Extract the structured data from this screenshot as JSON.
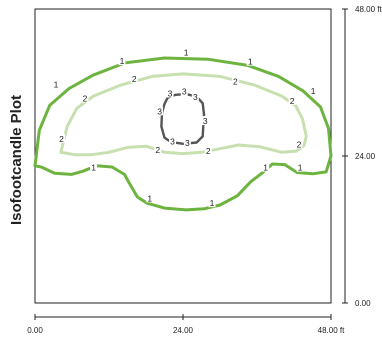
{
  "chart_data": {
    "type": "contour",
    "title": "Isofootcandle Plot",
    "x_ticks": [
      {
        "value": 0,
        "label": "0.00"
      },
      {
        "value": 24,
        "label": "24.00"
      },
      {
        "value": 48,
        "label": "48.00 ft"
      }
    ],
    "y_ticks": [
      {
        "value": 0,
        "label": "0.00"
      },
      {
        "value": 24,
        "label": "24.00"
      },
      {
        "value": 48,
        "label": "48.00 ft"
      }
    ],
    "xlim": [
      0,
      48
    ],
    "ylim": [
      0,
      48
    ],
    "grid": false,
    "levels": [
      {
        "level": 1,
        "label": "1",
        "color": "#6db33f",
        "points": [
          [
            0,
            22.4
          ],
          [
            0.7,
            28.2
          ],
          [
            2.4,
            32.3
          ],
          [
            5.5,
            35
          ],
          [
            9.4,
            37.2
          ],
          [
            14.6,
            39.2
          ],
          [
            21,
            40
          ],
          [
            28,
            39.8
          ],
          [
            34.5,
            38.8
          ],
          [
            39.5,
            37
          ],
          [
            43.5,
            34.6
          ],
          [
            46.3,
            32
          ],
          [
            47.6,
            28.5
          ],
          [
            48,
            24
          ],
          [
            47.2,
            21.4
          ],
          [
            45,
            21.1
          ],
          [
            42.5,
            21.3
          ],
          [
            40.5,
            22.6
          ],
          [
            38.5,
            22.7
          ],
          [
            36.8,
            21.2
          ],
          [
            35,
            19.8
          ],
          [
            32.8,
            17.5
          ],
          [
            30,
            16
          ],
          [
            27.5,
            15.4
          ],
          [
            24.5,
            15.2
          ],
          [
            21,
            15.5
          ],
          [
            18.2,
            16.3
          ],
          [
            16.6,
            17.3
          ],
          [
            15.5,
            19.2
          ],
          [
            14.5,
            21
          ],
          [
            12.5,
            22.2
          ],
          [
            10,
            22.4
          ],
          [
            7.7,
            21.5
          ],
          [
            5.9,
            21
          ],
          [
            3.2,
            21.2
          ],
          [
            1,
            22.2
          ],
          [
            0,
            22.4
          ]
        ],
        "label_points": [
          [
            3.4,
            35.7
          ],
          [
            14.1,
            39.5
          ],
          [
            24.5,
            40.9
          ],
          [
            34.9,
            39.4
          ],
          [
            45.1,
            34.6
          ],
          [
            9.5,
            22.1
          ],
          [
            18.6,
            17.1
          ],
          [
            28.7,
            16.3
          ],
          [
            37.4,
            22.1
          ],
          [
            43,
            22.1
          ]
        ]
      },
      {
        "level": 2,
        "label": "2",
        "color": "#c8e0b0",
        "points": [
          [
            4.2,
            24.6
          ],
          [
            5.2,
            28.8
          ],
          [
            6.8,
            31.8
          ],
          [
            9.5,
            33.8
          ],
          [
            14,
            35.6
          ],
          [
            19,
            37
          ],
          [
            24,
            37.4
          ],
          [
            30,
            37
          ],
          [
            35.5,
            35.6
          ],
          [
            40,
            33.8
          ],
          [
            42.3,
            32.2
          ],
          [
            43.4,
            30
          ],
          [
            44,
            27.2
          ],
          [
            43.6,
            25.7
          ],
          [
            42.4,
            24.8
          ],
          [
            40,
            24.6
          ],
          [
            36.5,
            25.5
          ],
          [
            33,
            25.8
          ],
          [
            30,
            25.2
          ],
          [
            27,
            24.6
          ],
          [
            24,
            24.4
          ],
          [
            21,
            24.6
          ],
          [
            18,
            25.6
          ],
          [
            15,
            25.4
          ],
          [
            12,
            24.6
          ],
          [
            9,
            24.2
          ],
          [
            6.5,
            24.2
          ],
          [
            4.8,
            24.5
          ],
          [
            4.2,
            24.6
          ]
        ],
        "label_points": [
          [
            8.1,
            33.4
          ],
          [
            16.1,
            36.6
          ],
          [
            32.5,
            36.2
          ],
          [
            41.7,
            33
          ],
          [
            4.3,
            26.8
          ],
          [
            19.9,
            25
          ],
          [
            28.1,
            24.8
          ],
          [
            42.8,
            25.9
          ]
        ]
      },
      {
        "level": 3,
        "label": "3",
        "color": "#555555",
        "points": [
          [
            21.5,
            33.5
          ],
          [
            22.8,
            34
          ],
          [
            24.5,
            34.1
          ],
          [
            26.2,
            33.7
          ],
          [
            27.2,
            32.6
          ],
          [
            27.4,
            30.8
          ],
          [
            27.3,
            29
          ],
          [
            27.2,
            27.2
          ],
          [
            26.2,
            26.2
          ],
          [
            24,
            26
          ],
          [
            22,
            26.3
          ],
          [
            21,
            27
          ],
          [
            20.5,
            28.8
          ],
          [
            20.6,
            31
          ],
          [
            21,
            32.5
          ],
          [
            21.5,
            33.5
          ]
        ],
        "label_points": [
          [
            21.9,
            34.2
          ],
          [
            24.2,
            34.5
          ],
          [
            26,
            33.6
          ],
          [
            20.2,
            31.3
          ],
          [
            27.6,
            29.7
          ],
          [
            22.3,
            26.4
          ],
          [
            24.7,
            26.1
          ]
        ]
      }
    ]
  }
}
